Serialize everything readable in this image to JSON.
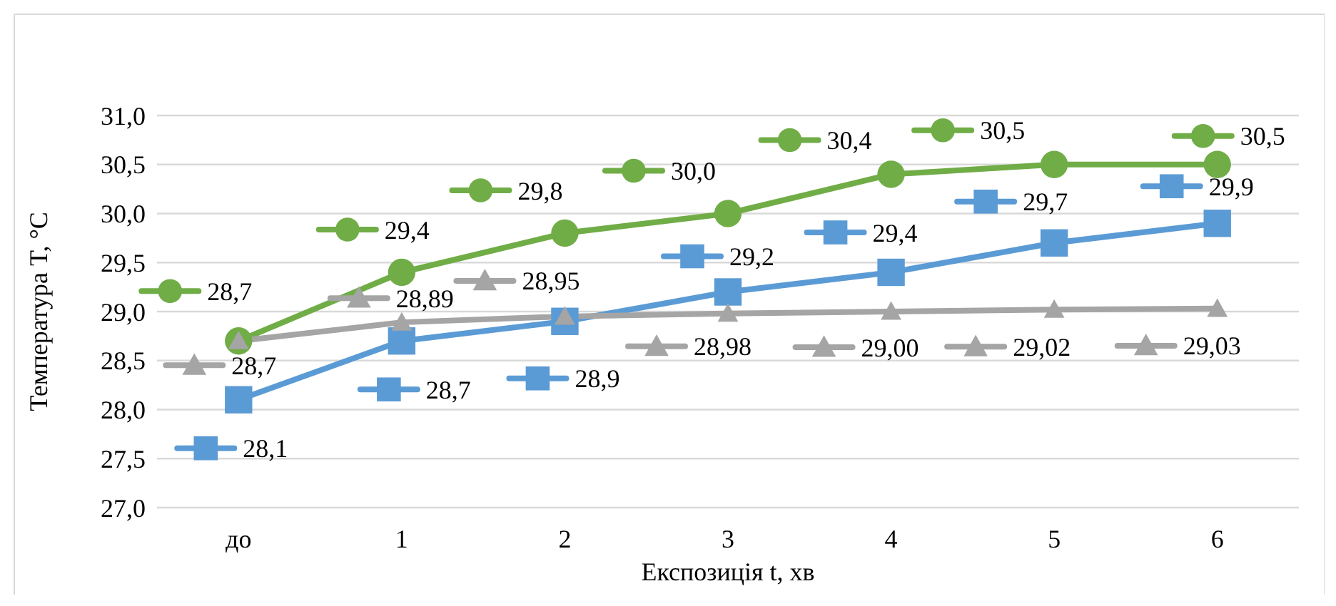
{
  "chart_data": {
    "type": "line",
    "xlabel": "Експозиція t, хв",
    "ylabel": "Температура  T, °С",
    "categories": [
      "до",
      "1",
      "2",
      "3",
      "4",
      "5",
      "6"
    ],
    "series": [
      {
        "color": "#70ad47",
        "marker": "circle",
        "values": [
          28.7,
          29.4,
          29.8,
          30.0,
          30.4,
          30.5,
          30.5
        ],
        "value_labels": [
          "28,7",
          "29,4",
          "29,8",
          "30,0",
          "30,4",
          "30,5",
          "30,5"
        ]
      },
      {
        "color": "#5b9bd5",
        "marker": "square",
        "values": [
          28.1,
          28.7,
          28.9,
          29.2,
          29.4,
          29.7,
          29.9
        ],
        "value_labels": [
          "28,1",
          "28,7",
          "28,9",
          "29,2",
          "29,4",
          "29,7",
          "29,9"
        ]
      },
      {
        "color": "#a5a5a5",
        "marker": "triangle",
        "values": [
          28.7,
          28.89,
          28.95,
          28.98,
          29.0,
          29.02,
          29.03
        ],
        "value_labels": [
          "28,7",
          "28,89",
          "28,95",
          "28,98",
          "29,00",
          "29,02",
          "29,03"
        ]
      }
    ],
    "ylim": [
      27,
      31
    ],
    "yticks": [
      {
        "value": 27,
        "label": "27,0"
      },
      {
        "value": 27.5,
        "label": "27,5"
      },
      {
        "value": 28,
        "label": "28,0"
      },
      {
        "value": 28.5,
        "label": "28,5"
      },
      {
        "value": 29,
        "label": "29,0"
      },
      {
        "value": 29.5,
        "label": "29,5"
      },
      {
        "value": 30,
        "label": "30,0"
      },
      {
        "value": 30.5,
        "label": "30,5"
      },
      {
        "value": 31,
        "label": "31,0"
      }
    ],
    "grid": "y"
  }
}
